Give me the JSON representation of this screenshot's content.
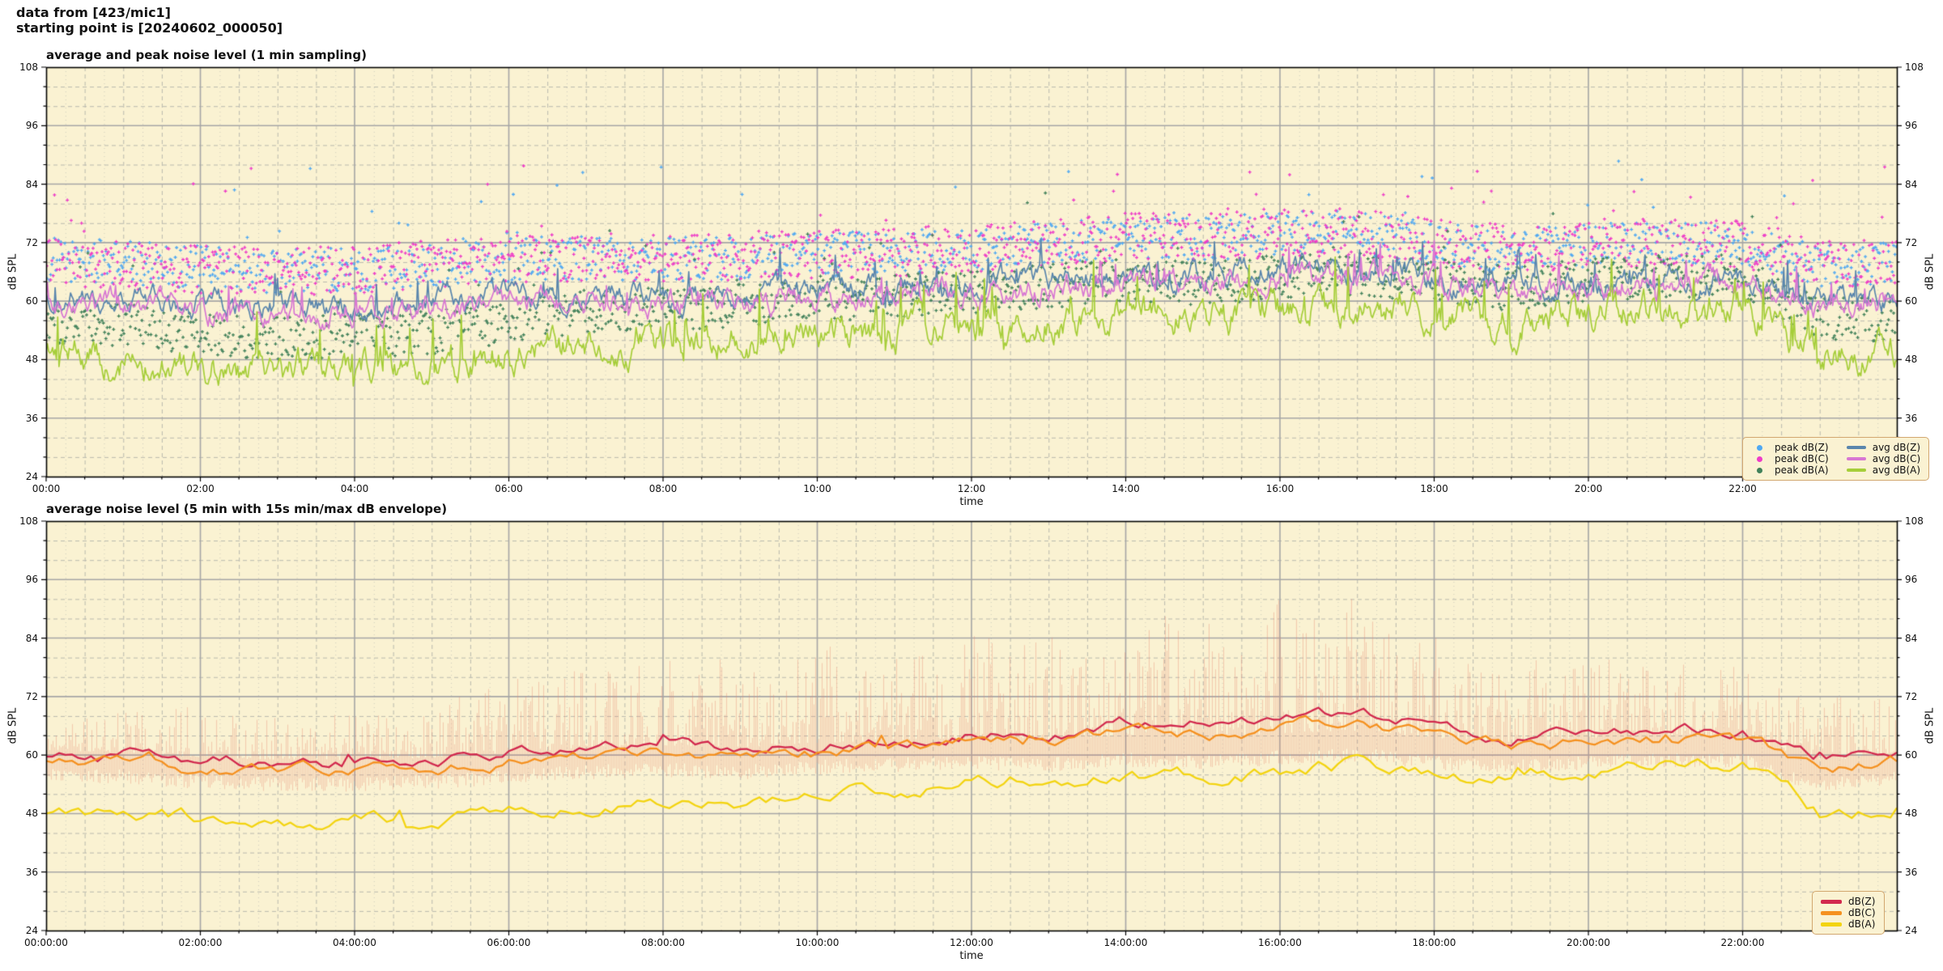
{
  "header": {
    "line1": "data from [423/mic1]",
    "line2": "starting point is [20240602_000050]"
  },
  "colors": {
    "page_bg": "#ffffff",
    "plot_bg": "#faf2d2",
    "frame": "#000000",
    "grid_major": "#a6a6a6",
    "grid_minor": "#b9b9ae",
    "grid_fine": "#c4c4ba",
    "text": "#111111",
    "legend_border": "#d2a76f",
    "legend_bg": "#faf2d2"
  },
  "chart_data": [
    {
      "type": "line+scatter",
      "title": "average and peak noise level (1 min sampling)",
      "xlabel": "time",
      "ylabel": "dB SPL",
      "ylabel_right": "dB SPL",
      "ylim": [
        24,
        108
      ],
      "yticks": [
        24,
        36,
        48,
        60,
        72,
        84,
        96,
        108
      ],
      "y_minor_step": 4,
      "xlim_hours": [
        0,
        24
      ],
      "xtick_hours": [
        0,
        2,
        4,
        6,
        8,
        10,
        12,
        14,
        16,
        18,
        20,
        22
      ],
      "xtick_labels": [
        "00:00",
        "02:00",
        "04:00",
        "06:00",
        "08:00",
        "10:00",
        "12:00",
        "14:00",
        "16:00",
        "18:00",
        "20:00",
        "22:00"
      ],
      "x_minor_step_hours": 0.5,
      "grid": true,
      "legend_position": "lower right",
      "sampling_minutes": 1,
      "keyframe_hours": [
        0,
        1,
        2,
        3,
        4,
        5,
        6,
        7,
        8,
        9,
        10,
        11,
        12,
        13,
        14,
        15,
        16,
        17,
        18,
        19,
        20,
        21,
        22,
        23,
        24
      ],
      "series": [
        {
          "name": "peak dB(Z)",
          "type": "scatter",
          "color": "#4fa8f2",
          "spread": 4.5,
          "outlier_p": 0.03,
          "outlier_mag": 12,
          "values": [
            68.5,
            68,
            67,
            66,
            66.5,
            67.5,
            68.5,
            69,
            68.5,
            69,
            69.5,
            70,
            70.5,
            71.5,
            73,
            72.5,
            74,
            74,
            71.5,
            70.5,
            71.5,
            72,
            72,
            67,
            68
          ]
        },
        {
          "name": "peak dB(C)",
          "type": "scatter",
          "color": "#ee3cc8",
          "spread": 5,
          "outlier_p": 0.03,
          "outlier_mag": 12,
          "values": [
            68,
            67.5,
            66.5,
            66,
            66.5,
            67.5,
            68.5,
            69,
            68.5,
            69,
            69.5,
            70,
            70.8,
            71.5,
            73.2,
            72.8,
            74.2,
            74.2,
            71.8,
            70.8,
            71.8,
            72.2,
            72,
            67.5,
            68.5
          ]
        },
        {
          "name": "peak dB(A)",
          "type": "scatter",
          "color": "#41815a",
          "spread": 4.5,
          "outlier_p": 0.025,
          "outlier_mag": 10,
          "values": [
            55.5,
            55,
            53.5,
            52.5,
            53,
            53.5,
            56,
            58,
            58.5,
            59,
            60,
            61,
            61.8,
            63,
            64.5,
            63.5,
            65,
            65.5,
            64.5,
            62.5,
            64.5,
            65,
            65.5,
            56,
            56.5
          ]
        },
        {
          "name": "avg dB(Z)",
          "type": "line",
          "color": "#5a86ad",
          "jitter": 1.5,
          "spike_p": 0.025,
          "spike_mag": 5,
          "values": [
            61,
            60.5,
            59.5,
            58.5,
            59,
            60,
            61,
            61.5,
            61,
            61.5,
            62,
            62.5,
            63.2,
            64,
            65.5,
            65,
            66.5,
            66.8,
            65,
            63,
            64,
            64.5,
            64.3,
            59.8,
            60.5
          ]
        },
        {
          "name": "avg dB(C)",
          "type": "line",
          "color": "#d877d3",
          "jitter": 1.5,
          "spike_p": 0.025,
          "spike_mag": 5,
          "values": [
            59.6,
            59.1,
            58.1,
            57.1,
            57.6,
            58.6,
            59.6,
            60.1,
            59.6,
            60.1,
            60.6,
            61.1,
            61.8,
            62.6,
            64.1,
            63.6,
            65.1,
            65.4,
            63.6,
            61.6,
            62.6,
            63.1,
            62.9,
            58.4,
            59.1
          ]
        },
        {
          "name": "avg dB(A)",
          "type": "line",
          "color": "#a6ce39",
          "jitter": 2.1,
          "spike_p": 0.05,
          "spike_mag": 8,
          "values": [
            48.5,
            48,
            46.5,
            45.5,
            46,
            46.5,
            49,
            51,
            51.5,
            52,
            53,
            54,
            54.8,
            56,
            57.5,
            56.5,
            58,
            58.5,
            57.5,
            55.5,
            57.5,
            58,
            58.3,
            48.8,
            49.5
          ]
        }
      ]
    },
    {
      "type": "line+envelope",
      "title": "average noise level (5 min with 15s min/max dB envelope)",
      "xlabel": "time",
      "ylabel": "dB SPL",
      "ylabel_right": "dB SPL",
      "ylim": [
        24,
        108
      ],
      "yticks": [
        24,
        36,
        48,
        60,
        72,
        84,
        96,
        108
      ],
      "y_minor_step": 4,
      "xlim_hours": [
        0,
        24
      ],
      "xtick_hours": [
        0,
        2,
        4,
        6,
        8,
        10,
        12,
        14,
        16,
        18,
        20,
        22
      ],
      "xtick_labels": [
        "00:00:00",
        "02:00:00",
        "04:00:00",
        "06:00:00",
        "08:00:00",
        "10:00:00",
        "12:00:00",
        "14:00:00",
        "16:00:00",
        "18:00:00",
        "20:00:00",
        "22:00:00"
      ],
      "x_minor_step_hours": 0.5,
      "grid": true,
      "legend_position": "lower right",
      "sampling_minutes": 5,
      "keyframe_hours": [
        0,
        1,
        2,
        3,
        4,
        5,
        6,
        7,
        8,
        9,
        10,
        11,
        12,
        13,
        14,
        15,
        16,
        17,
        18,
        19,
        20,
        21,
        22,
        23,
        24
      ],
      "envelope": {
        "name": "15s min/max dB envelope",
        "color": "rgba(232,140,115,0.38)",
        "max": [
          70,
          69,
          70,
          68.5,
          68.5,
          70,
          76,
          79,
          80,
          80,
          82,
          84,
          85,
          84,
          89,
          88,
          92,
          93,
          87,
          80,
          80,
          79,
          78,
          72,
          72
        ],
        "min": [
          56,
          55.5,
          54.5,
          54,
          54,
          54.5,
          55.5,
          56.5,
          57,
          56.5,
          57.5,
          58,
          58.5,
          58,
          59,
          58.5,
          59.5,
          60,
          58.5,
          57.5,
          58.5,
          59,
          58.8,
          53.5,
          55.5
        ]
      },
      "series": [
        {
          "name": "dB(Z)",
          "type": "line",
          "color": "#d2294e",
          "jitter": 0.9,
          "spike_p": 0.02,
          "spike_mag": 2.5,
          "values": [
            60.5,
            60,
            59,
            58.5,
            58.5,
            59,
            60.5,
            61,
            61.5,
            61,
            62,
            63,
            64.5,
            64,
            66.5,
            65.5,
            67.5,
            68.5,
            66,
            63.2,
            64.5,
            65,
            64.8,
            58.8,
            60.3
          ]
        },
        {
          "name": "dB(C)",
          "type": "line",
          "color": "#f59120",
          "jitter": 0.9,
          "spike_p": 0.02,
          "spike_mag": 2.5,
          "values": [
            58.7,
            58.2,
            57.2,
            56.7,
            56.7,
            57.2,
            58.7,
            59.2,
            59.7,
            59.2,
            60.2,
            61.2,
            62.7,
            62.2,
            64.7,
            63.7,
            65.7,
            66.7,
            64.2,
            61.4,
            62.7,
            63.2,
            63,
            57.2,
            58.6
          ]
        },
        {
          "name": "dB(A)",
          "type": "line",
          "color": "#f3d411",
          "jitter": 1.1,
          "spike_p": 0.02,
          "spike_mag": 2.5,
          "values": [
            48,
            47.5,
            46.5,
            45.5,
            46,
            46.5,
            48.5,
            49.5,
            50,
            50.5,
            52,
            53.5,
            54.5,
            54,
            56.5,
            55.5,
            57,
            58,
            56.8,
            55,
            57.5,
            58,
            58.3,
            47.8,
            49.3
          ]
        }
      ]
    }
  ]
}
